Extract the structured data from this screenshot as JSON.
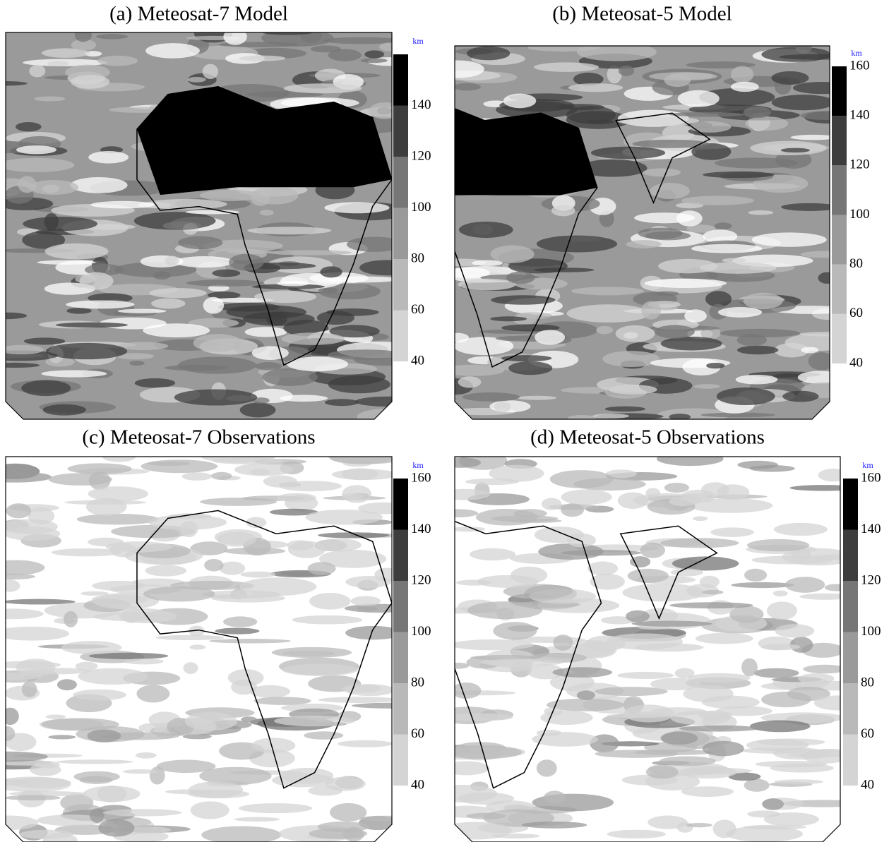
{
  "chart_data": [
    {
      "type": "contour-map",
      "title": "(a) Meteosat-7 Model",
      "unit": "km",
      "ylim": [
        40,
        160
      ],
      "yticks": [
        40,
        60,
        80,
        100,
        120,
        140
      ],
      "colors": [
        "#d4d4d4",
        "#b9b9b9",
        "#9a9a9a",
        "#767676",
        "#3d3d3d",
        "#000000"
      ]
    },
    {
      "type": "contour-map",
      "title": "(b) Meteosat-5 Model",
      "unit": "km",
      "ylim": [
        40,
        160
      ],
      "yticks": [
        40,
        60,
        80,
        100,
        120,
        140,
        160
      ],
      "colors": [
        "#d4d4d4",
        "#b9b9b9",
        "#9a9a9a",
        "#767676",
        "#3d3d3d",
        "#000000"
      ]
    },
    {
      "type": "contour-map",
      "title": "(c) Meteosat-7 Observations",
      "unit": "km",
      "ylim": [
        40,
        160
      ],
      "yticks": [
        40,
        60,
        80,
        100,
        120,
        140,
        160
      ],
      "colors": [
        "#d4d4d4",
        "#b9b9b9",
        "#9a9a9a",
        "#767676",
        "#3d3d3d",
        "#000000"
      ]
    },
    {
      "type": "contour-map",
      "title": "(d) Meteosat-5 Observations",
      "unit": "km",
      "ylim": [
        40,
        160
      ],
      "yticks": [
        40,
        60,
        80,
        100,
        120,
        140,
        160
      ],
      "colors": [
        "#d4d4d4",
        "#b9b9b9",
        "#9a9a9a",
        "#767676",
        "#3d3d3d",
        "#000000"
      ]
    }
  ]
}
